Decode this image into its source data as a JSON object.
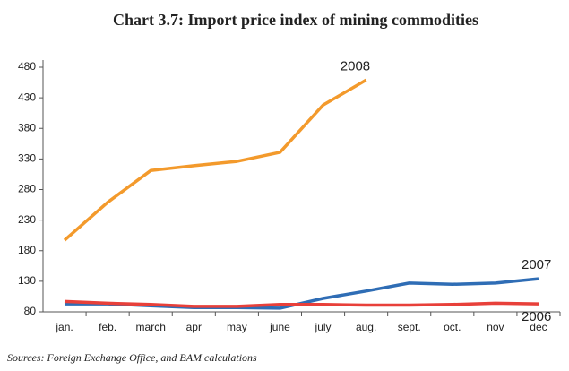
{
  "chart_data": {
    "type": "line",
    "title": "Chart 3.7: Import price index of mining commodities",
    "source": "Sources: Foreign Exchange Office, and BAM calculations",
    "categories": [
      "jan.",
      "feb.",
      "march",
      "apr",
      "may",
      "june",
      "july",
      "aug.",
      "sept.",
      "oct.",
      "nov",
      "dec"
    ],
    "series": [
      {
        "name": "2008",
        "color": "#f39a2c",
        "values": [
          197,
          259,
          311,
          319,
          326,
          341,
          418,
          459,
          null,
          null,
          null,
          null
        ]
      },
      {
        "name": "2007",
        "color": "#2f6db5",
        "values": [
          93,
          93,
          90,
          87,
          87,
          86,
          102,
          114,
          127,
          125,
          127,
          134
        ]
      },
      {
        "name": "2006",
        "color": "#e8403a",
        "values": [
          97,
          94,
          92,
          89,
          89,
          92,
          92,
          91,
          91,
          92,
          94,
          93
        ]
      }
    ],
    "ylim": [
      80,
      480
    ],
    "yticks": [
      80,
      130,
      180,
      230,
      280,
      330,
      380,
      430,
      480
    ]
  }
}
